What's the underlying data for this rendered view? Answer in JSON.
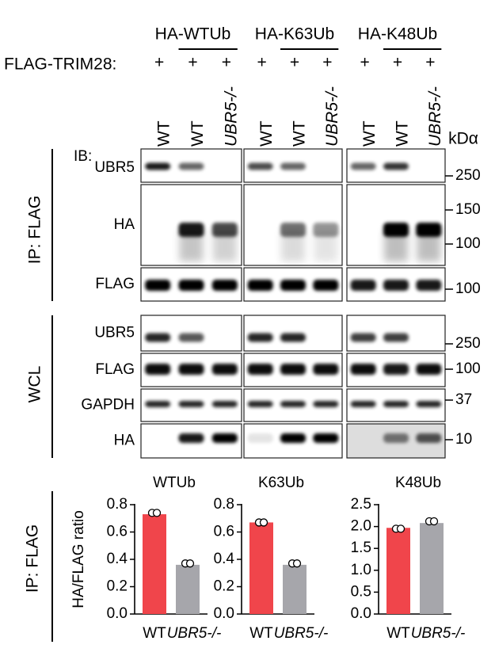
{
  "header": {
    "groups": [
      "HA-WTUb",
      "HA-K63Ub",
      "HA-K48Ub"
    ],
    "row_label": "FLAG-TRIM28:",
    "plus": "+",
    "lanes": [
      "WT",
      "WT",
      "UBR5-/-"
    ],
    "unit": "kDα"
  },
  "blot": {
    "ib": "IB:",
    "sections": [
      {
        "label": "IP: FLAG",
        "rows": [
          "UBR5",
          "HA",
          "FLAG"
        ]
      },
      {
        "label": "WCL",
        "rows": [
          "UBR5",
          "FLAG",
          "GAPDH",
          "HA"
        ]
      }
    ],
    "markers": [
      "250",
      "150",
      "100",
      "100",
      "250",
      "100",
      "37",
      "10"
    ]
  },
  "quant": {
    "section": "IP: FLAG",
    "ylabel": "HA/FLAG ratio"
  },
  "chart_data": [
    {
      "type": "bar",
      "title": "WTUb",
      "categories": [
        "WT",
        "UBR5-/-"
      ],
      "values": [
        0.73,
        0.36
      ],
      "colors": [
        "#f0454b",
        "#a6a6ab"
      ],
      "points": [
        [
          0.74,
          0.74
        ],
        [
          0.37,
          0.37
        ]
      ],
      "ylim": [
        0,
        0.8
      ],
      "yticks": [
        {
          "value": 0,
          "label": "0.0"
        },
        {
          "value": 0.2,
          "label": "0.2"
        },
        {
          "value": 0.4,
          "label": "0.4"
        },
        {
          "value": 0.6,
          "label": "0.6"
        },
        {
          "value": 0.8,
          "label": "0.8"
        }
      ]
    },
    {
      "type": "bar",
      "title": "K63Ub",
      "categories": [
        "WT",
        "UBR5-/-"
      ],
      "values": [
        0.67,
        0.36
      ],
      "colors": [
        "#f0454b",
        "#a6a6ab"
      ],
      "points": [
        [
          0.67,
          0.67
        ],
        [
          0.37,
          0.37
        ]
      ],
      "ylim": [
        0,
        0.8
      ],
      "yticks": [
        {
          "value": 0,
          "label": "0.0"
        },
        {
          "value": 0.2,
          "label": "0.2"
        },
        {
          "value": 0.4,
          "label": "0.4"
        },
        {
          "value": 0.6,
          "label": "0.6"
        },
        {
          "value": 0.8,
          "label": "0.8"
        }
      ]
    },
    {
      "type": "bar",
      "title": "K48Ub",
      "categories": [
        "WT",
        "UBR5-/-"
      ],
      "values": [
        1.97,
        2.08
      ],
      "colors": [
        "#f0454b",
        "#a6a6ab"
      ],
      "points": [
        [
          1.95,
          1.95
        ],
        [
          2.12,
          2.12
        ]
      ],
      "ylim": [
        0,
        2.5
      ],
      "yticks": [
        {
          "value": 0,
          "label": "0.0"
        },
        {
          "value": 0.5,
          "label": "0.5"
        },
        {
          "value": 1,
          "label": "1.0"
        },
        {
          "value": 1.5,
          "label": "1.5"
        },
        {
          "value": 2,
          "label": "2.0"
        },
        {
          "value": 2.5,
          "label": "2.5"
        }
      ]
    }
  ]
}
